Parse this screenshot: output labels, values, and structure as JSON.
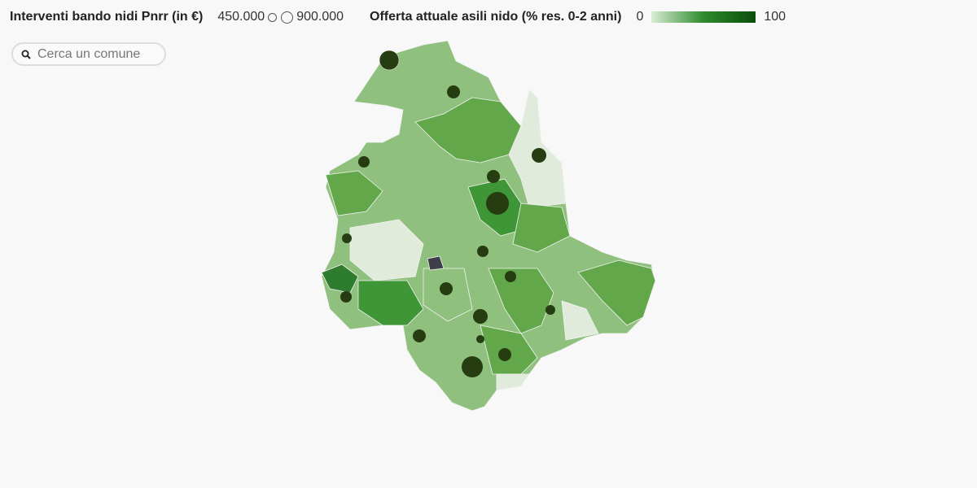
{
  "legend": {
    "size_title": "Interventi bando nidi Pnrr (in €)",
    "size_min": "450.000",
    "size_max": "900.000",
    "color_title": "Offerta attuale asili nido (% res. 0-2 anni)",
    "color_min": "0",
    "color_max": "100"
  },
  "search": {
    "placeholder": "Cerca un comune"
  }
}
